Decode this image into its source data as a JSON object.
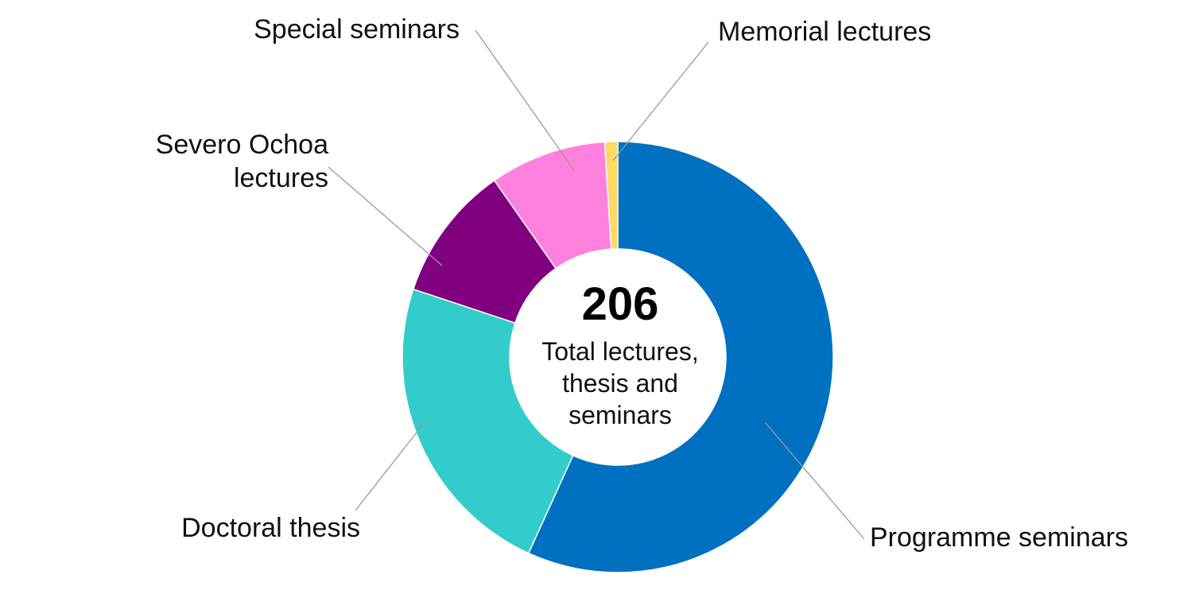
{
  "chart_data": {
    "type": "pie",
    "variant": "donut",
    "total": 206,
    "center_caption": [
      "Total lectures,",
      "thesis and",
      "seminars"
    ],
    "slices": [
      {
        "label": "Programme seminars",
        "label_lines": [
          "Programme seminars"
        ],
        "value": 117,
        "color": "#0070C0"
      },
      {
        "label": "Doctoral thesis",
        "label_lines": [
          "Doctoral thesis"
        ],
        "value": 48,
        "color": "#33CCCC"
      },
      {
        "label": "Severo Ochoa lectures",
        "label_lines": [
          "Severo Ochoa",
          "lectures"
        ],
        "value": 21,
        "color": "#800080"
      },
      {
        "label": "Special seminars",
        "label_lines": [
          "Special seminars"
        ],
        "value": 18,
        "color": "#FF80DD"
      },
      {
        "label": "Memorial lectures",
        "label_lines": [
          "Memorial lectures"
        ],
        "value": 2,
        "color": "#FFD966"
      }
    ]
  }
}
